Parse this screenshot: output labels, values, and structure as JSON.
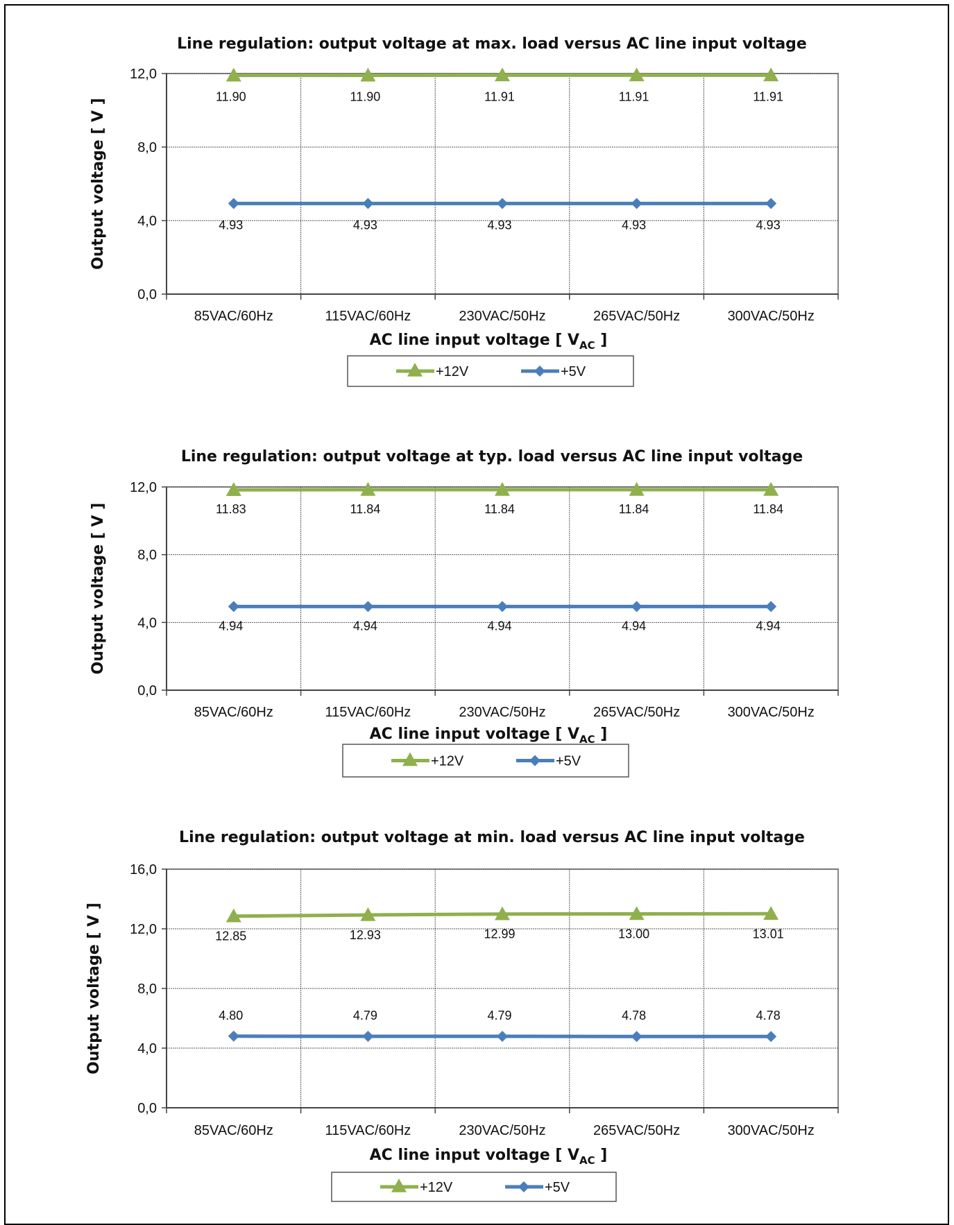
{
  "colors": {
    "series12": "#8fb04d",
    "series5": "#4a7ebb",
    "grid": "#555555",
    "axis": "#444444"
  },
  "chart_data": [
    {
      "type": "line",
      "title": "Line regulation: output voltage at max. load versus AC line input voltage",
      "xlabel": "AC line input voltage [ V",
      "xlabel_sub": "AC",
      "xlabel_end": " ]",
      "ylabel": "Output voltage [ V ]",
      "categories": [
        "85VAC/60Hz",
        "115VAC/60Hz",
        "230VAC/50Hz",
        "265VAC/50Hz",
        "300VAC/50Hz"
      ],
      "yticks": [
        "0,0",
        "4,0",
        "8,0",
        "12,0"
      ],
      "ylim": [
        0,
        12
      ],
      "series": [
        {
          "name": "+12V",
          "marker": "triangle",
          "values": [
            11.9,
            11.9,
            11.91,
            11.91,
            11.91
          ],
          "labels": [
            "11.90",
            "11.90",
            "11.91",
            "11.91",
            "11.91"
          ]
        },
        {
          "name": "+5V",
          "marker": "diamond",
          "values": [
            4.93,
            4.93,
            4.93,
            4.93,
            4.93
          ],
          "labels": [
            "4.93",
            "4.93",
            "4.93",
            "4.93",
            "4.93"
          ]
        }
      ],
      "legend": "bottom"
    },
    {
      "type": "line",
      "title": "Line regulation: output voltage at typ. load versus AC line input voltage",
      "xlabel": "AC line input voltage [ V",
      "xlabel_sub": "AC",
      "xlabel_end": " ]",
      "ylabel": "Output  voltage [ V ]",
      "categories": [
        "85VAC/60Hz",
        "115VAC/60Hz",
        "230VAC/50Hz",
        "265VAC/50Hz",
        "300VAC/50Hz"
      ],
      "yticks": [
        "0,0",
        "4,0",
        "8,0",
        "12,0"
      ],
      "ylim": [
        0,
        12
      ],
      "series": [
        {
          "name": "+12V",
          "marker": "triangle",
          "values": [
            11.83,
            11.84,
            11.84,
            11.84,
            11.84
          ],
          "labels": [
            "11.83",
            "11.84",
            "11.84",
            "11.84",
            "11.84"
          ]
        },
        {
          "name": "+5V",
          "marker": "diamond",
          "values": [
            4.94,
            4.94,
            4.94,
            4.94,
            4.94
          ],
          "labels": [
            "4.94",
            "4.94",
            "4.94",
            "4.94",
            "4.94"
          ]
        }
      ],
      "legend": "bottom"
    },
    {
      "type": "line",
      "title": "Line regulation: output voltage at min. load versus AC line input voltage",
      "xlabel": "AC line input voltage [ V",
      "xlabel_sub": "AC",
      "xlabel_end": " ]",
      "ylabel": "Output   voltage [ V ]",
      "categories": [
        "85VAC/60Hz",
        "115VAC/60Hz",
        "230VAC/50Hz",
        "265VAC/50Hz",
        "300VAC/50Hz"
      ],
      "yticks": [
        "0,0",
        "4,0",
        "8,0",
        "12,0",
        "16,0"
      ],
      "ylim": [
        0,
        16
      ],
      "series": [
        {
          "name": "+12V",
          "marker": "triangle",
          "values": [
            12.85,
            12.93,
            12.99,
            13.0,
            13.01
          ],
          "labels": [
            "12.85",
            "12.93",
            "12.99",
            "13.00",
            "13.01"
          ]
        },
        {
          "name": "+5V",
          "marker": "diamond",
          "values": [
            4.8,
            4.79,
            4.79,
            4.78,
            4.78
          ],
          "labels": [
            "4.80",
            "4.79",
            "4.79",
            "4.78",
            "4.78"
          ]
        }
      ],
      "legend": "bottom"
    }
  ]
}
